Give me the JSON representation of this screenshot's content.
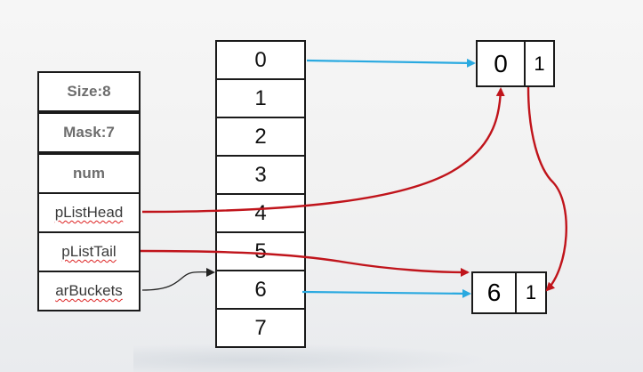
{
  "struct_fields": [
    {
      "label": "Size:8"
    },
    {
      "label": "Mask:7"
    },
    {
      "label": "num"
    },
    {
      "label": "pListHead"
    },
    {
      "label": "pListTail"
    },
    {
      "label": "arBuckets"
    }
  ],
  "buckets": [
    "0",
    "1",
    "2",
    "3",
    "4",
    "5",
    "6",
    "7"
  ],
  "nodes": [
    {
      "key": "0",
      "value": "1"
    },
    {
      "key": "6",
      "value": "1"
    }
  ],
  "colors": {
    "bucket_pointer": "#29a9e0",
    "list_pointer": "#c0141b",
    "array_pointer": "#222222"
  }
}
